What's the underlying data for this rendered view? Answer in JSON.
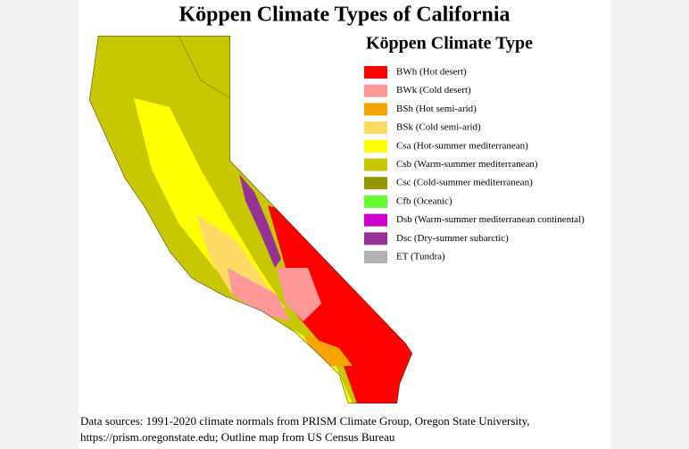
{
  "title": "Köppen Climate Types of California",
  "legend": {
    "title": "Köppen Climate Type",
    "items": [
      {
        "label": "BWh (Hot desert)",
        "color": "#ff0000"
      },
      {
        "label": "BWk (Cold desert)",
        "color": "#ff9999"
      },
      {
        "label": "BSh (Hot semi-arid)",
        "color": "#f5a500"
      },
      {
        "label": "BSk (Cold semi-arid)",
        "color": "#ffdb66"
      },
      {
        "label": "Csa (Hot-summer mediterranean)",
        "color": "#ffff00"
      },
      {
        "label": "Csb (Warm-summer mediterranean)",
        "color": "#c8c800"
      },
      {
        "label": "Csc (Cold-summer mediterranean)",
        "color": "#969600"
      },
      {
        "label": "Cfb (Oceanic)",
        "color": "#66ff33"
      },
      {
        "label": "Dsb (Warm-summer mediterranean continental)",
        "color": "#cc00cc"
      },
      {
        "label": "Dsc (Dry-summer subarctic)",
        "color": "#963296"
      },
      {
        "label": "ET (Tundra)",
        "color": "#b2b2b2"
      }
    ]
  },
  "source": {
    "lines": [
      "Data sources: 1991-2020 climate normals from PRISM Climate Group, Oregon State University,",
      "https://prism.oregonstate.edu; Outline map from US Census Bureau"
    ]
  }
}
